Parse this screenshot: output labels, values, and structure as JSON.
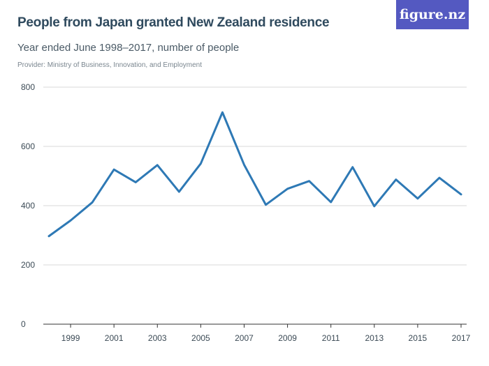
{
  "header": {
    "title": "People from Japan granted New Zealand residence",
    "subtitle": "Year ended June 1998–2017, number of people",
    "provider": "Provider: Ministry of Business, Innovation, and Employment",
    "logo": "figure.nz"
  },
  "colors": {
    "line": "#2e79b5",
    "grid": "#d9d9d9",
    "logo_bg": "#5459c1"
  },
  "chart_data": {
    "type": "line",
    "title": "People from Japan granted New Zealand residence",
    "subtitle": "Year ended June 1998–2017, number of people",
    "xlabel": "",
    "ylabel": "",
    "ylim": [
      0,
      800
    ],
    "yticks": [
      0,
      200,
      400,
      600,
      800
    ],
    "xticks": [
      1999,
      2001,
      2003,
      2005,
      2007,
      2009,
      2011,
      2013,
      2015,
      2017
    ],
    "grid": true,
    "x": [
      1998,
      1999,
      2000,
      2001,
      2002,
      2003,
      2004,
      2005,
      2006,
      2007,
      2008,
      2009,
      2010,
      2011,
      2012,
      2013,
      2014,
      2015,
      2016,
      2017
    ],
    "series": [
      {
        "values": [
          297,
          350,
          411,
          522,
          479,
          537,
          447,
          542,
          715,
          538,
          403,
          457,
          483,
          412,
          530,
          398,
          488,
          424,
          494,
          438
        ]
      }
    ]
  }
}
